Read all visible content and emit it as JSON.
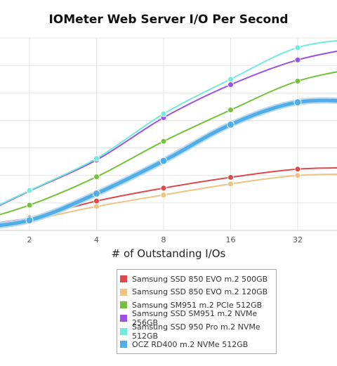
{
  "chart_data": {
    "type": "line",
    "title": "IOMeter Web Server I/O Per Second",
    "xlabel": "# of Outstanding I/Os",
    "ylabel": "",
    "x": [
      1,
      2,
      4,
      8,
      16,
      32,
      64
    ],
    "x_tick_labels": [
      "2",
      "4",
      "8",
      "16",
      "32"
    ],
    "x_tick_values": [
      2,
      4,
      8,
      16,
      32
    ],
    "x_scale": "log2",
    "xlim": [
      1.25,
      48
    ],
    "ylim": [
      0,
      70
    ],
    "y_grid_step": 10,
    "grid": true,
    "legend_position": "bottom-center",
    "series": [
      {
        "name": "Samsung SSD 850 EVO m.2 500GB",
        "color": "#e0474a",
        "values": [
          1.2,
          4.5,
          10.7,
          15.4,
          19.3,
          22.3,
          22.8
        ],
        "emphasis": false
      },
      {
        "name": "Samsung SSD 850 EVO m.2 120GB",
        "color": "#efc27f",
        "values": [
          0.8,
          3.8,
          8.7,
          12.9,
          16.9,
          20.0,
          20.5
        ],
        "emphasis": false
      },
      {
        "name": "Samsung SM951 m.2 PCIe 512GB",
        "color": "#73c23a",
        "values": [
          1.8,
          9.2,
          19.5,
          32.4,
          43.8,
          54.3,
          59.5
        ],
        "emphasis": false
      },
      {
        "name": "Samsung SSD SM951 m.2 NVMe 256GB",
        "color": "#9c52e6",
        "values": [
          2.5,
          14.3,
          25.6,
          41.0,
          53.0,
          62.0,
          67.0
        ],
        "emphasis": false
      },
      {
        "name": "Samsung SSD 950 Pro m.2 NVMe 512GB",
        "color": "#71ecd8",
        "values": [
          3.0,
          14.5,
          26.2,
          42.4,
          55.0,
          66.5,
          70.0
        ],
        "emphasis": false
      },
      {
        "name": "OCZ RD400 m.2 NVMe 512GB",
        "color": "#4faee8",
        "values": [
          0.6,
          3.7,
          13.4,
          25.3,
          38.5,
          46.6,
          46.8
        ],
        "emphasis": true
      }
    ]
  }
}
